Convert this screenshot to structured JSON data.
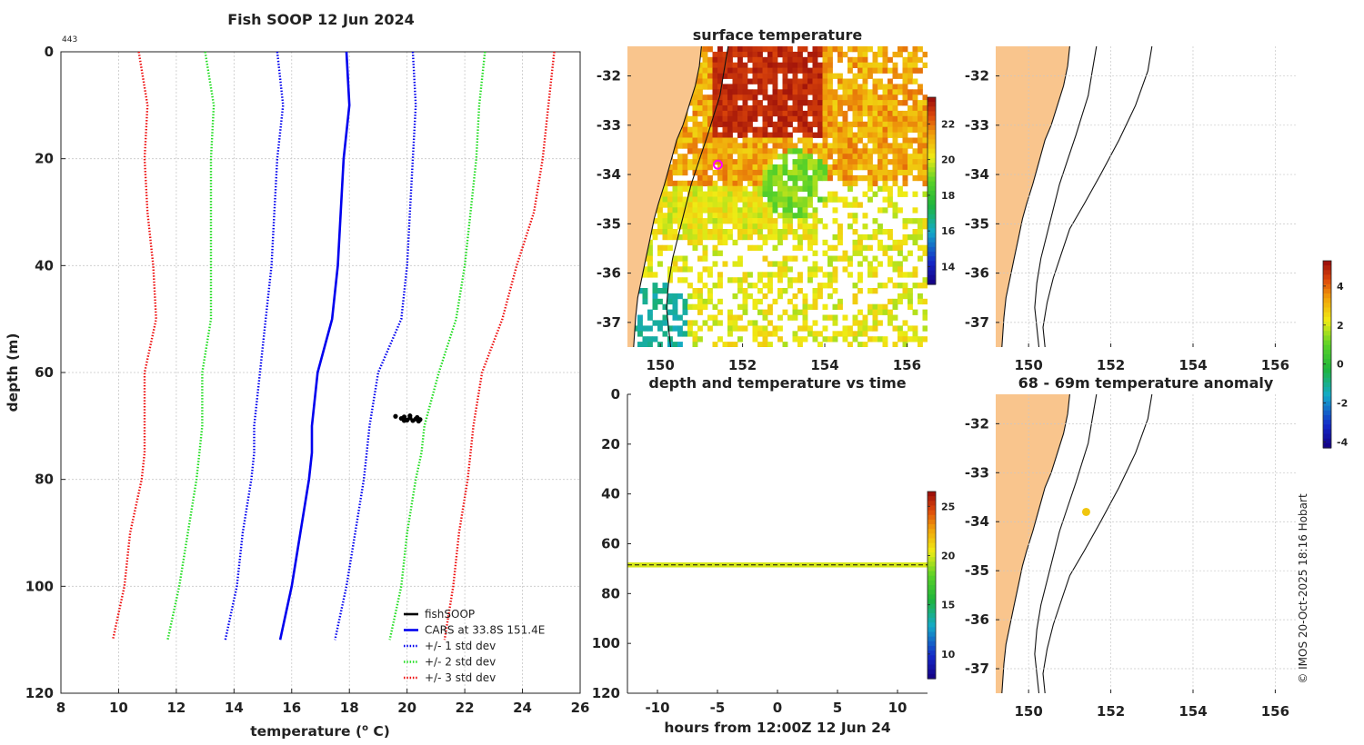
{
  "colors": {
    "land": "#f9c58d",
    "cars": "#0000ee",
    "std1": "#0000ee",
    "std2": "#22dd22",
    "std3": "#ee1111",
    "fish": "#000000",
    "ship": "#ff00ff",
    "grid": "#c8c8c8"
  },
  "chart_data": [
    {
      "id": "profile",
      "type": "line",
      "title": "Fish SOOP 12 Jun 2024",
      "corner_label": "443",
      "xlabel": "temperature (",
      "xlabel_sup": "o",
      "xlabel_end": " C)",
      "ylabel": "depth (m)",
      "xlim": [
        8,
        26
      ],
      "ylim": [
        0,
        120
      ],
      "xticks": [
        "8",
        "10",
        "12",
        "14",
        "16",
        "18",
        "20",
        "22",
        "24",
        "26"
      ],
      "yticks": [
        "0",
        "20",
        "40",
        "60",
        "80",
        "100",
        "120"
      ],
      "depths": [
        0,
        10,
        20,
        30,
        40,
        50,
        60,
        70,
        75,
        80,
        90,
        100,
        110
      ],
      "series": [
        {
          "name": "CARS at 33.8S 151.4E",
          "style": "cars",
          "dash": false,
          "values": [
            17.9,
            18.0,
            17.8,
            17.7,
            17.6,
            17.4,
            16.9,
            16.7,
            16.7,
            16.6,
            16.3,
            16.0,
            15.6
          ]
        },
        {
          "name": "+/- 1 std dev",
          "style": "std1",
          "dash": true,
          "values": [
            20.2,
            20.3,
            20.2,
            20.1,
            20.0,
            19.8,
            19.0,
            18.7,
            18.6,
            18.5,
            18.2,
            17.9,
            17.5
          ]
        },
        {
          "name": "",
          "style": "std1",
          "dash": true,
          "values": [
            15.5,
            15.7,
            15.5,
            15.4,
            15.3,
            15.1,
            14.9,
            14.7,
            14.7,
            14.6,
            14.3,
            14.1,
            13.7
          ]
        },
        {
          "name": "+/- 2 std dev",
          "style": "std2",
          "dash": true,
          "values": [
            22.7,
            22.5,
            22.4,
            22.2,
            22.0,
            21.7,
            21.1,
            20.6,
            20.5,
            20.3,
            20.0,
            19.8,
            19.4
          ]
        },
        {
          "name": "",
          "style": "std2",
          "dash": true,
          "values": [
            13.0,
            13.3,
            13.2,
            13.2,
            13.2,
            13.2,
            12.9,
            12.9,
            12.8,
            12.7,
            12.4,
            12.1,
            11.7
          ]
        },
        {
          "name": "+/- 3 std dev",
          "style": "std3",
          "dash": true,
          "values": [
            25.1,
            24.9,
            24.7,
            24.4,
            23.8,
            23.3,
            22.6,
            22.3,
            22.2,
            22.1,
            21.8,
            21.6,
            21.3
          ]
        },
        {
          "name": "",
          "style": "std3",
          "dash": true,
          "values": [
            10.7,
            11.0,
            10.9,
            11.0,
            11.2,
            11.3,
            10.9,
            10.9,
            10.9,
            10.8,
            10.4,
            10.2,
            9.8
          ]
        }
      ],
      "fish_legend": "fishSOOP",
      "fish_points": [
        {
          "t": 19.6,
          "d": 68.2
        },
        {
          "t": 19.8,
          "d": 68.6
        },
        {
          "t": 19.9,
          "d": 68.3
        },
        {
          "t": 20.0,
          "d": 68.9
        },
        {
          "t": 20.1,
          "d": 68.5
        },
        {
          "t": 20.2,
          "d": 69.0
        },
        {
          "t": 20.3,
          "d": 68.7
        },
        {
          "t": 20.4,
          "d": 69.1
        },
        {
          "t": 20.1,
          "d": 68.1
        },
        {
          "t": 19.9,
          "d": 69.0
        },
        {
          "t": 20.35,
          "d": 68.4
        },
        {
          "t": 20.45,
          "d": 68.8
        }
      ]
    },
    {
      "id": "sst-map",
      "type": "heatmap",
      "title": "surface temperature",
      "yticks": [
        "-32",
        "-33",
        "-34",
        "-35",
        "-36",
        "-37"
      ],
      "xticks": [
        "150",
        "152",
        "154",
        "156"
      ],
      "xlim": [
        149.2,
        156.5
      ],
      "ylim": [
        -37.5,
        -31.4
      ],
      "colorbar_ticks": [
        "22",
        "20",
        "18",
        "16",
        "14"
      ],
      "colorbar_range": [
        13,
        23.5
      ],
      "ship_position": {
        "lon": 151.4,
        "lat": -33.8
      }
    },
    {
      "id": "depth-time",
      "type": "scatter",
      "title": "depth and temperature vs time",
      "xlabel": "hours from 12:00Z 12 Jun 24",
      "xticks": [
        "-10",
        "-5",
        "0",
        "5",
        "10"
      ],
      "yticks": [
        "0",
        "20",
        "40",
        "60",
        "80",
        "100",
        "120"
      ],
      "xlim": [
        -12.5,
        12.5
      ],
      "ylim": [
        0,
        120
      ],
      "depth_band": [
        67.5,
        69.5
      ],
      "colorbar_ticks": [
        "25",
        "20",
        "15",
        "10"
      ],
      "colorbar_range": [
        7.5,
        26.5
      ]
    },
    {
      "id": "blank-map",
      "type": "heatmap",
      "title": "",
      "yticks": [
        "-32",
        "-33",
        "-34",
        "-35",
        "-36",
        "-37"
      ],
      "xticks": [
        "150",
        "152",
        "154",
        "156"
      ],
      "xlim": [
        149.2,
        156.5
      ],
      "ylim": [
        -37.5,
        -31.4
      ]
    },
    {
      "id": "anomaly-map",
      "type": "heatmap",
      "title": "68 - 69m temperature anomaly",
      "yticks": [
        "-32",
        "-33",
        "-34",
        "-35",
        "-36",
        "-37"
      ],
      "xticks": [
        "150",
        "152",
        "154",
        "156"
      ],
      "xlim": [
        149.2,
        156.5
      ],
      "ylim": [
        -37.5,
        -31.4
      ],
      "colorbar_ticks": [
        "4",
        "2",
        "0",
        "-2",
        "-4"
      ],
      "colorbar_range": [
        -4.3,
        5.3
      ],
      "anomaly_point": {
        "lon": 151.4,
        "lat": -33.8,
        "value": 2.8
      }
    }
  ],
  "credit": "© IMOS 20-Oct-2025 18:16 Hobart"
}
